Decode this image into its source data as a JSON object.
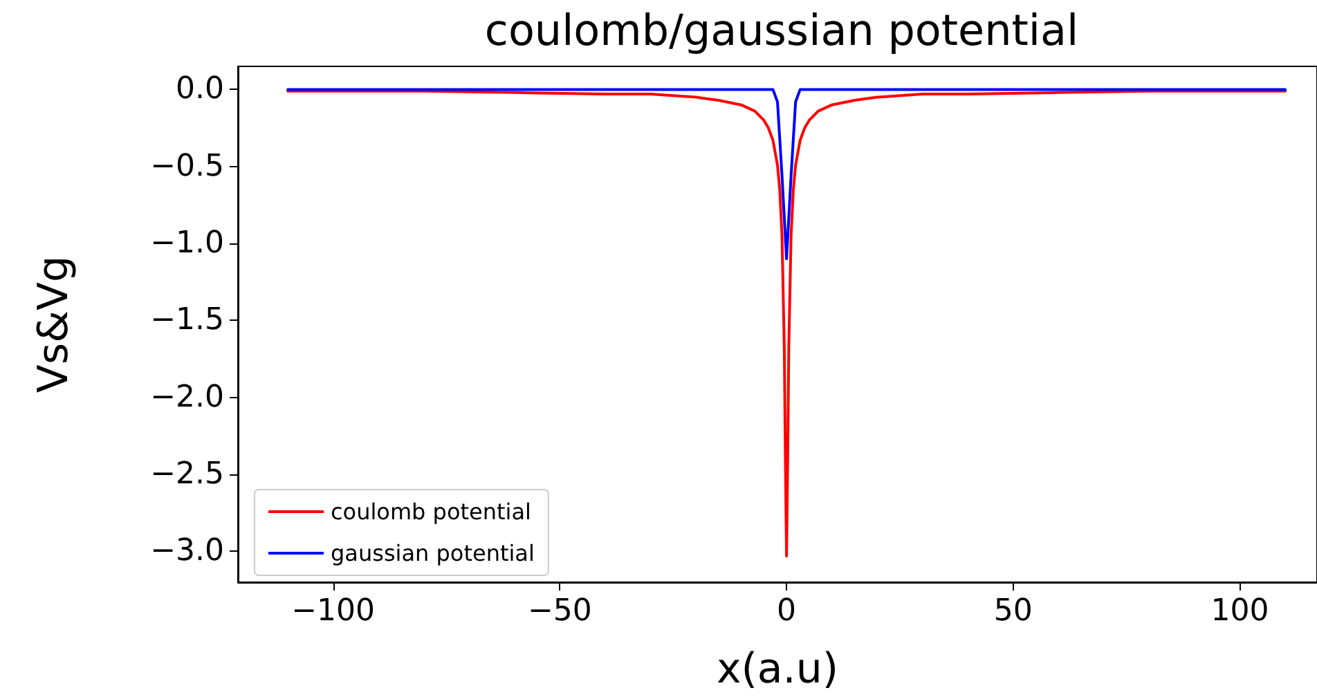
{
  "chart_data": {
    "type": "line",
    "title": "coulomb/gaussian potential",
    "xlabel": "x(a.u)",
    "ylabel": "Vs&Vg",
    "xlim": [
      -121,
      117
    ],
    "xticks": [
      -100,
      -50,
      0,
      50,
      100
    ],
    "ylim": [
      -3.2,
      0.15
    ],
    "yticks": [
      {
        "value": 0,
        "label": "0.0"
      },
      -0.5,
      {
        "value": -1,
        "label": "−1.0"
      },
      -1.5,
      {
        "value": -2,
        "label": "−2.0"
      },
      -2.5,
      {
        "value": -3,
        "label": "−3.0"
      }
    ],
    "grid": false,
    "legend": "bottom left",
    "marker": "none",
    "line_style": "solid",
    "series": [
      {
        "name": "coulomb potential",
        "color": "#ff0000",
        "x": [
          -110,
          -80,
          -60,
          -40,
          -30,
          -20,
          -15,
          -10,
          -7,
          -5,
          -4,
          -3,
          -2,
          -1.5,
          -1,
          -0.5,
          -0.25,
          0,
          0.25,
          0.5,
          1,
          1.5,
          2,
          3,
          4,
          5,
          7,
          10,
          15,
          20,
          30,
          40,
          60,
          80,
          110
        ],
        "values": [
          -0.01,
          -0.01,
          -0.02,
          -0.03,
          -0.03,
          -0.05,
          -0.07,
          -0.1,
          -0.14,
          -0.2,
          -0.25,
          -0.33,
          -0.49,
          -0.65,
          -0.95,
          -1.67,
          -2.41,
          -3.03,
          -2.41,
          -1.67,
          -0.95,
          -0.65,
          -0.49,
          -0.33,
          -0.25,
          -0.2,
          -0.14,
          -0.1,
          -0.07,
          -0.05,
          -0.03,
          -0.03,
          -0.02,
          -0.01,
          -0.01
        ]
      },
      {
        "name": "gaussian potential",
        "color": "#0000ff",
        "x": [
          -110,
          -3,
          -2,
          -1,
          0,
          1,
          2,
          3,
          110
        ],
        "values": [
          0,
          0,
          -0.08,
          -0.56,
          -1.1,
          -0.56,
          -0.08,
          0,
          0
        ]
      }
    ]
  }
}
